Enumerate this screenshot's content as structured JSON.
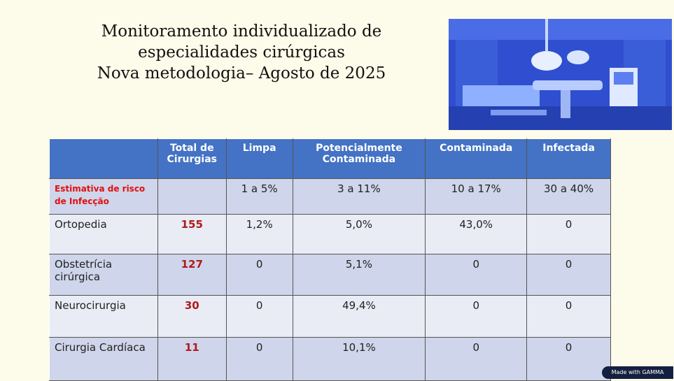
{
  "header": {
    "title_lines": [
      "Monitoramento individualizado de especialidades cirúrgicas",
      "Nova metodologia– Agosto de 2025"
    ]
  },
  "table": {
    "header": [
      null,
      "Total de Cirurgias",
      "Limpa",
      "Potencialmente Contaminada",
      "Contaminada",
      "Infectada"
    ],
    "rows": [
      [
        "Estimativa de risco de Infecção",
        null,
        "1 a 5%",
        "3 a 11%",
        "10 a 17%",
        "30 a 40%"
      ],
      [
        "Ortopedia",
        "155",
        "1,2%",
        "5,0%",
        "43,0%",
        "0"
      ],
      [
        "Obstetrícia cirúrgica",
        "127",
        "0",
        "5,1%",
        "0",
        "0"
      ],
      [
        "Neurocirurgia",
        "30",
        "0",
        "49,4%",
        "0",
        "0"
      ],
      [
        "Cirurgia Cardíaca",
        "11",
        "0",
        "10,1%",
        "0",
        "0"
      ]
    ]
  },
  "badge": "Made with GAMMA"
}
